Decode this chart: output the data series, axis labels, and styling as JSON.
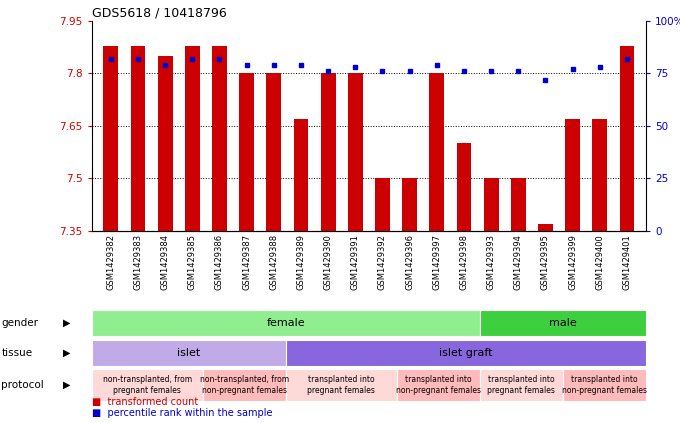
{
  "title": "GDS5618 / 10418796",
  "samples": [
    "GSM1429382",
    "GSM1429383",
    "GSM1429384",
    "GSM1429385",
    "GSM1429386",
    "GSM1429387",
    "GSM1429388",
    "GSM1429389",
    "GSM1429390",
    "GSM1429391",
    "GSM1429392",
    "GSM1429396",
    "GSM1429397",
    "GSM1429398",
    "GSM1429393",
    "GSM1429394",
    "GSM1429395",
    "GSM1429399",
    "GSM1429400",
    "GSM1429401"
  ],
  "bar_values": [
    7.88,
    7.88,
    7.85,
    7.88,
    7.88,
    7.8,
    7.8,
    7.67,
    7.8,
    7.8,
    7.5,
    7.5,
    7.8,
    7.6,
    7.5,
    7.5,
    7.37,
    7.67,
    7.67,
    7.88
  ],
  "blue_values": [
    82,
    82,
    79,
    82,
    82,
    79,
    79,
    79,
    76,
    78,
    76,
    76,
    79,
    76,
    76,
    76,
    72,
    77,
    78,
    82
  ],
  "ymin": 7.35,
  "ymax": 7.95,
  "yticks": [
    7.35,
    7.5,
    7.65,
    7.8,
    7.95
  ],
  "right_yticks": [
    0,
    25,
    50,
    75,
    100
  ],
  "bar_color": "#cc0000",
  "blue_color": "#0000cc",
  "bg_color": "#ffffff",
  "gender_regions": [
    {
      "label": "female",
      "start": 0,
      "end": 14,
      "color": "#90EE90"
    },
    {
      "label": "male",
      "start": 14,
      "end": 20,
      "color": "#3ecf3e"
    }
  ],
  "tissue_regions": [
    {
      "label": "islet",
      "start": 0,
      "end": 7,
      "color": "#c0aae8"
    },
    {
      "label": "islet graft",
      "start": 7,
      "end": 20,
      "color": "#8866dd"
    }
  ],
  "protocol_regions": [
    {
      "label": "non-transplanted, from\npregnant females",
      "start": 0,
      "end": 4,
      "color": "#ffd8d8"
    },
    {
      "label": "non-transplanted, from\nnon-pregnant females",
      "start": 4,
      "end": 7,
      "color": "#ffbbbb"
    },
    {
      "label": "transplanted into\npregnant females",
      "start": 7,
      "end": 11,
      "color": "#ffd8d8"
    },
    {
      "label": "transplanted into\nnon-pregnant females",
      "start": 11,
      "end": 14,
      "color": "#ffbbbb"
    },
    {
      "label": "transplanted into\npregnant females",
      "start": 14,
      "end": 17,
      "color": "#ffd8d8"
    },
    {
      "label": "transplanted into\nnon-pregnant females",
      "start": 17,
      "end": 20,
      "color": "#ffbbbb"
    }
  ],
  "grid_yticks": [
    7.5,
    7.65,
    7.8
  ]
}
